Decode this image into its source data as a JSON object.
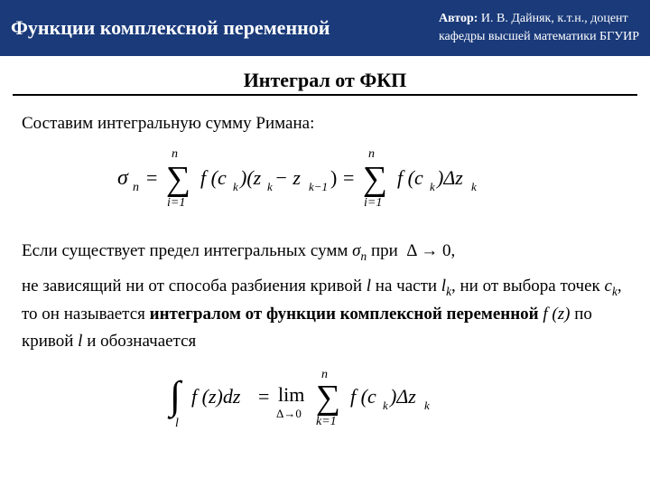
{
  "header": {
    "title": "Функции комплексной переменной",
    "author_label": "Автор:",
    "author_name": "И. В. Дайняк, к.т.н., доцент",
    "author_affil": "кафедры высшей математики БГУИР"
  },
  "section_title": "Интеграл от ФКП",
  "para1": "Составим интегральную сумму Римана:",
  "para2_a": "Если существует предел интегральных сумм ",
  "para2_sigma": "σ",
  "para2_sub": "n",
  "para2_b": " при ",
  "para2_delta": "Δ → 0",
  "para2_c": ",",
  "para3_a": "не зависящий ни от способа разбиения кривой ",
  "para3_l": "l",
  "para3_b": " на части ",
  "para3_lk": "l",
  "para3_lk_sub": "k",
  "para3_c": ", ни от выбора точек ",
  "para3_ck": "c",
  "para3_ck_sub": "k",
  "para3_d": ", то он называется ",
  "para3_e": "интегралом от функции комплексной переменной ",
  "para3_fz": "f (z)",
  "para3_f": " по кривой ",
  "para3_l2": "l",
  "para3_g": " и обозначается",
  "formula1": {
    "lhs_sigma": "σ",
    "lhs_sub": "n",
    "sum_lower": "i=1",
    "sum_upper": "n",
    "term1": "f (c",
    "term1_sub": "k",
    "term1_close": ")(z",
    "term1_sub2": "k",
    "term1_mid": " − z",
    "term1_sub3": "k−1",
    "term1_end": ")",
    "sum2_lower": "i=1",
    "sum2_upper": "n",
    "term2": "f (c",
    "term2_sub": "k",
    "term2_mid": ")Δz",
    "term2_sub2": "k"
  },
  "formula2": {
    "int_lower": "l",
    "integrand": "f (z)dz",
    "lim": "lim",
    "lim_sub": "Δ→0",
    "sum_lower": "k=1",
    "sum_upper": "n",
    "term": "f (c",
    "term_sub": "k",
    "term_mid": ")Δz",
    "term_sub2": "k"
  },
  "colors": {
    "header_bg": "#1a3a7a",
    "header_fg": "#ffffff",
    "text": "#000000",
    "rule": "#000000"
  }
}
